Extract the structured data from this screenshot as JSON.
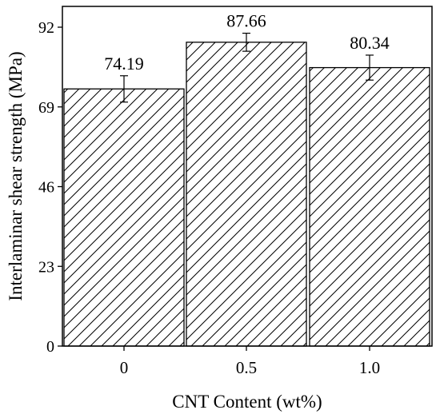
{
  "chart_data": {
    "type": "bar",
    "title": "",
    "xlabel": "CNT Content (wt%)",
    "ylabel": "Interlaminar shear strength (MPa)",
    "categories": [
      "0",
      "0.5",
      "1.0"
    ],
    "values": [
      74.19,
      87.66,
      80.34
    ],
    "value_labels": [
      "74.19",
      "87.66",
      "80.34"
    ],
    "errors": [
      3.8,
      2.6,
      3.6
    ],
    "ylim": [
      0,
      98
    ],
    "yticks": [
      0,
      23,
      46,
      69,
      92
    ],
    "ytick_labels": [
      "0",
      "23",
      "46",
      "69",
      "92"
    ],
    "bar_fill": "hatched",
    "grid": false,
    "legend": "none",
    "colors": {
      "bar_edge": "#000000",
      "hatch": "#000000",
      "background": "#ffffff"
    }
  }
}
